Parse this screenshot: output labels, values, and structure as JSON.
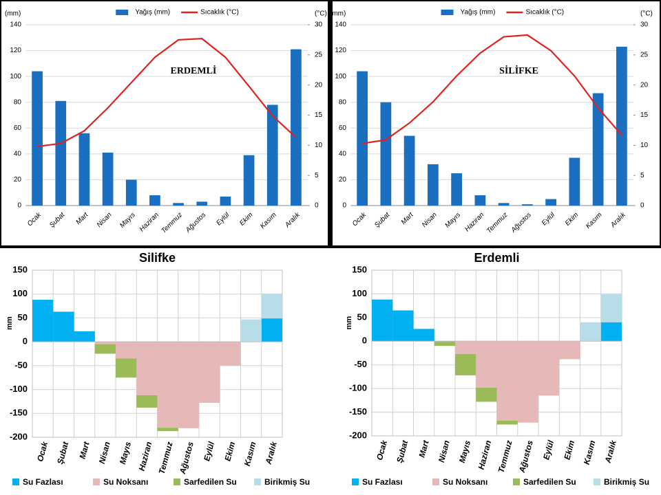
{
  "chart_data": [
    {
      "type": "combo",
      "title": "ERDEMLİ",
      "ylabel": "(mm)",
      "y2label": "(°C)",
      "categories": [
        "Ocak",
        "Şubat",
        "Mart",
        "Nisan",
        "Mayıs",
        "Haziran",
        "Temmuz",
        "Ağustos",
        "Eylül",
        "Ekim",
        "Kasım",
        "Aralık"
      ],
      "series": [
        {
          "name": "Yağış (mm)",
          "type": "bar",
          "color": "#1a6fc0",
          "values": [
            104,
            81,
            56,
            41,
            20,
            8,
            2,
            3,
            7,
            39,
            78,
            121
          ]
        },
        {
          "name": "Sıcaklık (°C)",
          "type": "line",
          "axis": "y2",
          "color": "#e3211c",
          "values": [
            9.8,
            10.3,
            12.4,
            16.2,
            20.4,
            24.6,
            27.5,
            27.7,
            24.6,
            19.8,
            14.9,
            11.3
          ]
        }
      ],
      "ylim": [
        0,
        140
      ],
      "yticks": [
        0,
        20,
        40,
        60,
        80,
        100,
        120,
        140
      ],
      "y2lim": [
        0,
        30
      ],
      "y2ticks": [
        0,
        5,
        10,
        15,
        20,
        25,
        30
      ],
      "grid": true
    },
    {
      "type": "combo",
      "title": "SİLİFKE",
      "ylabel": "(mm)",
      "y2label": "(°C)",
      "categories": [
        "Ocak",
        "Şubat",
        "Mart",
        "Nisan",
        "Mayıs",
        "Haziran",
        "Temmuz",
        "Ağustos",
        "Eylül",
        "Ekim",
        "Kasım",
        "Aralık"
      ],
      "series": [
        {
          "name": "Yağış (mm)",
          "type": "bar",
          "color": "#1a6fc0",
          "values": [
            104,
            80,
            54,
            32,
            25,
            8,
            2,
            1,
            5,
            37,
            87,
            123
          ]
        },
        {
          "name": "Sıcaklık (°C)",
          "type": "line",
          "axis": "y2",
          "color": "#e3211c",
          "values": [
            10.3,
            10.9,
            13.7,
            17.2,
            21.5,
            25.3,
            28.0,
            28.3,
            25.7,
            21.5,
            16.2,
            11.7
          ]
        }
      ],
      "ylim": [
        0,
        140
      ],
      "yticks": [
        0,
        20,
        40,
        60,
        80,
        100,
        120,
        140
      ],
      "y2lim": [
        0,
        30
      ],
      "y2ticks": [
        0,
        5,
        10,
        15,
        20,
        25,
        30
      ],
      "grid": true
    },
    {
      "type": "stacked_bar",
      "title": "Silifke",
      "ylabel": "mm",
      "categories": [
        "Ocak",
        "Şubat",
        "Mart",
        "Nisan",
        "Mayıs",
        "Haziran",
        "Temmuz",
        "Ağustos",
        "Eylül",
        "Ekim",
        "Kasım",
        "Aralık"
      ],
      "series": [
        {
          "name": "Su Fazlası",
          "color": "#00b0f0",
          "values": [
            88,
            63,
            22,
            null,
            null,
            null,
            null,
            null,
            null,
            null,
            null,
            49
          ]
        },
        {
          "name": "Su Noksanı",
          "color": "#e6b9b8",
          "values": [
            null,
            null,
            null,
            -5,
            -35,
            -112,
            -180,
            -181,
            -128,
            -50,
            null,
            null
          ]
        },
        {
          "name": "Sarfedilen Su",
          "color": "#9bbb59",
          "values": [
            null,
            null,
            null,
            -20,
            -40,
            -26,
            -7,
            null,
            null,
            null,
            null,
            null
          ]
        },
        {
          "name": "Birikmiş Su",
          "color": "#b7dee8",
          "values": [
            null,
            null,
            null,
            null,
            null,
            null,
            null,
            null,
            null,
            null,
            47,
            52
          ]
        }
      ],
      "ylim": [
        -200,
        150
      ],
      "yticks": [
        -200,
        -150,
        -100,
        -50,
        0,
        50,
        100,
        150
      ],
      "grid": true
    },
    {
      "type": "stacked_bar",
      "title": "Erdemli",
      "ylabel": "mm",
      "categories": [
        "Ocak",
        "Şubat",
        "Mart",
        "Nisan",
        "Mayıs",
        "Haziran",
        "Temmuz",
        "Ağustos",
        "Eylül",
        "Ekim",
        "Kasım",
        "Aralık"
      ],
      "series": [
        {
          "name": "Su Fazlası",
          "color": "#00b0f0",
          "values": [
            88,
            65,
            26,
            null,
            null,
            null,
            null,
            null,
            null,
            null,
            null,
            40
          ]
        },
        {
          "name": "Su Noksanı",
          "color": "#e6b9b8",
          "values": [
            null,
            null,
            null,
            null,
            -27,
            -98,
            -168,
            -172,
            -115,
            -38,
            null,
            null
          ]
        },
        {
          "name": "Sarfedilen Su",
          "color": "#9bbb59",
          "values": [
            null,
            null,
            null,
            -10,
            -45,
            -30,
            -8,
            null,
            null,
            null,
            null,
            null
          ]
        },
        {
          "name": "Birikmiş Su",
          "color": "#b7dee8",
          "values": [
            null,
            null,
            null,
            null,
            null,
            null,
            null,
            null,
            null,
            null,
            40,
            59
          ]
        }
      ],
      "ylim": [
        -200,
        150
      ],
      "yticks": [
        -200,
        -150,
        -100,
        -50,
        0,
        50,
        100,
        150
      ],
      "grid": true
    }
  ]
}
